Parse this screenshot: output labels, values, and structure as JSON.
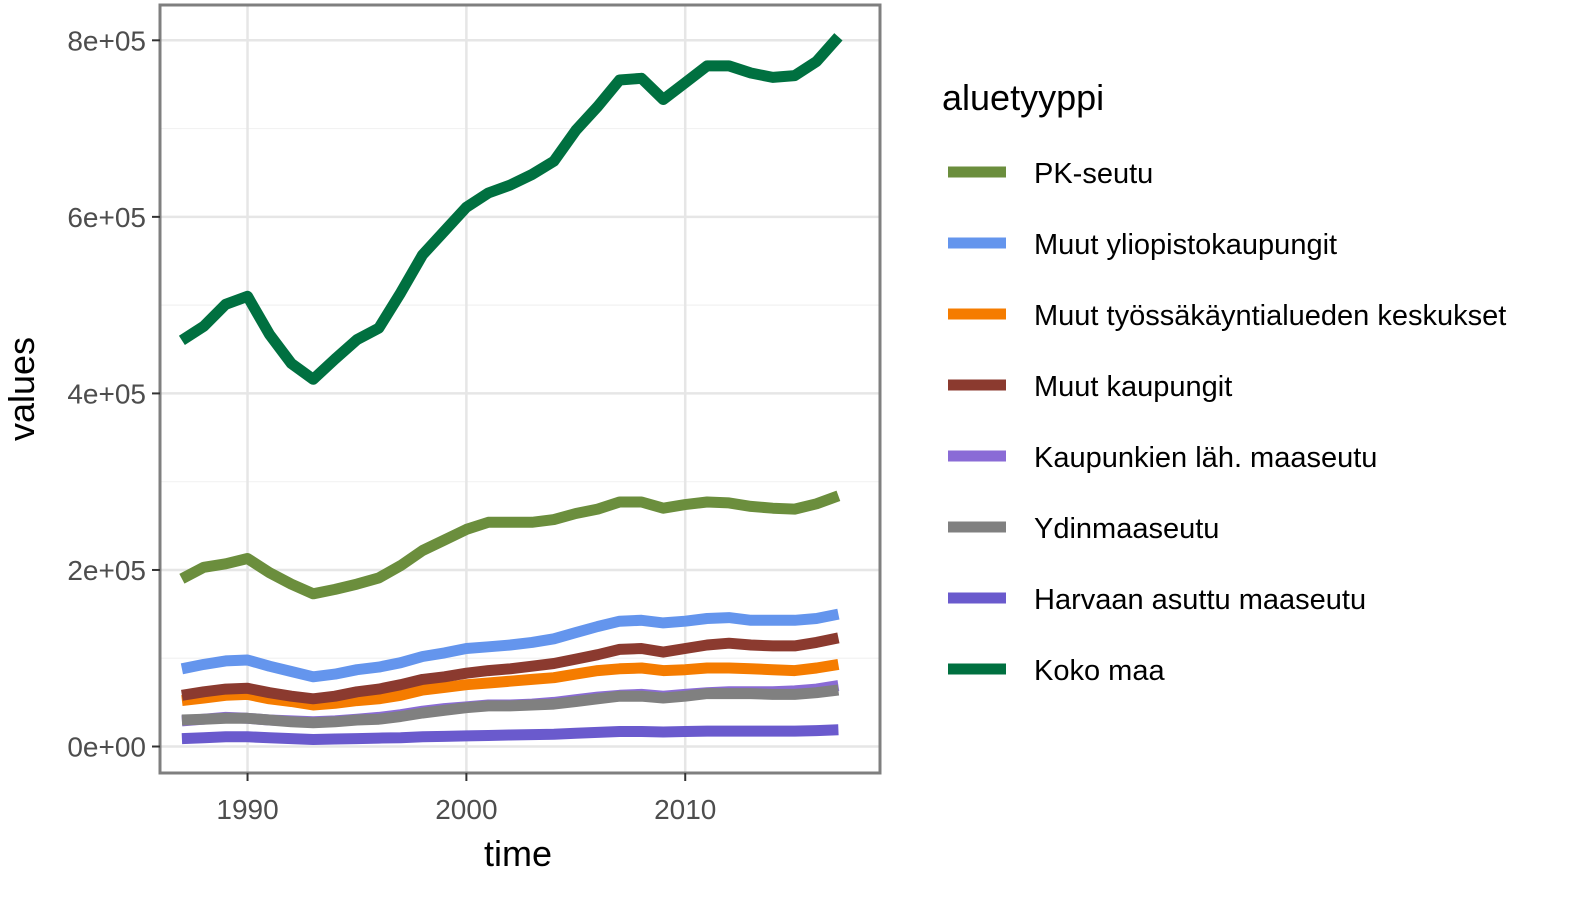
{
  "chart_data": {
    "type": "line",
    "title": "",
    "xlabel": "time",
    "ylabel": "values",
    "xlim": [
      1986.0,
      2018.9
    ],
    "ylim": [
      -30000,
      840000
    ],
    "x_ticks": [
      1990,
      2000,
      2010
    ],
    "x_tick_labels": [
      "1990",
      "2000",
      "2010"
    ],
    "y_ticks": [
      0,
      200000,
      400000,
      600000,
      800000
    ],
    "y_tick_labels": [
      "0e+00",
      "2e+05",
      "4e+05",
      "6e+05",
      "8e+05"
    ],
    "grid": true,
    "legend": {
      "title": "aluetyyppi",
      "position": "right"
    },
    "x": [
      1987,
      1988,
      1989,
      1990,
      1991,
      1992,
      1993,
      1994,
      1995,
      1996,
      1997,
      1998,
      1999,
      2000,
      2001,
      2002,
      2003,
      2004,
      2005,
      2006,
      2007,
      2008,
      2009,
      2010,
      2011,
      2012,
      2013,
      2014,
      2015,
      2016,
      2017
    ],
    "series": [
      {
        "name": "PK-seutu",
        "color": "#6b8e3d",
        "values": [
          190000,
          203000,
          207000,
          213000,
          197000,
          184000,
          173000,
          178000,
          184000,
          191000,
          205000,
          222000,
          234000,
          246000,
          254000,
          254000,
          254000,
          257000,
          264000,
          269000,
          277000,
          277000,
          270000,
          274000,
          277000,
          276000,
          272000,
          270000,
          269000,
          275000,
          284000
        ]
      },
      {
        "name": "Muut yliopistokaupungit",
        "color": "#6495ed",
        "values": [
          88000,
          93000,
          97000,
          98000,
          91000,
          85000,
          79000,
          82000,
          87000,
          90000,
          95000,
          102000,
          106000,
          111000,
          113000,
          115000,
          118000,
          122000,
          129000,
          136000,
          142000,
          143000,
          140000,
          142000,
          145000,
          146000,
          143000,
          143000,
          143000,
          145000,
          150000
        ]
      },
      {
        "name": "Muut työssäkäyntialueden keskukset",
        "color": "#f57c00",
        "values": [
          52000,
          55000,
          58000,
          59000,
          54000,
          51000,
          47000,
          49000,
          52000,
          54000,
          58000,
          64000,
          67000,
          70000,
          72000,
          74000,
          76000,
          78000,
          82000,
          86000,
          88000,
          89000,
          86000,
          87000,
          89000,
          89000,
          88000,
          87000,
          86000,
          89000,
          93000
        ]
      },
      {
        "name": "Muut kaupungit",
        "color": "#8b3a2f",
        "values": [
          58000,
          62000,
          65000,
          66000,
          61000,
          57000,
          54000,
          57000,
          62000,
          65000,
          70000,
          76000,
          79000,
          83000,
          86000,
          88000,
          91000,
          94000,
          99000,
          104000,
          110000,
          111000,
          107000,
          111000,
          115000,
          117000,
          115000,
          114000,
          114000,
          118000,
          123000
        ]
      },
      {
        "name": "Kaupunkien läh. maaseutu",
        "color": "#8a6bd6",
        "values": [
          29000,
          31000,
          33000,
          32000,
          30000,
          29000,
          28000,
          29000,
          31000,
          33000,
          36000,
          40000,
          43000,
          45000,
          47000,
          47000,
          48000,
          50000,
          53000,
          56000,
          58000,
          59000,
          57000,
          59000,
          61000,
          62000,
          62000,
          62000,
          63000,
          65000,
          69000
        ]
      },
      {
        "name": "Ydinmaaseutu",
        "color": "#808080",
        "values": [
          30000,
          31000,
          32000,
          32000,
          30000,
          28000,
          27000,
          28000,
          30000,
          31000,
          34000,
          38000,
          41000,
          44000,
          46000,
          46000,
          47000,
          48000,
          51000,
          54000,
          57000,
          57000,
          55000,
          57000,
          60000,
          60000,
          60000,
          59000,
          59000,
          61000,
          64000
        ]
      },
      {
        "name": "Harvaan asuttu maaseutu",
        "color": "#6a5acd",
        "values": [
          9000,
          10000,
          11000,
          11000,
          10000,
          9000,
          8000,
          8500,
          9000,
          9500,
          10000,
          11000,
          11500,
          12000,
          12500,
          13000,
          13500,
          14000,
          15000,
          16000,
          17000,
          17000,
          16500,
          17000,
          17500,
          17500,
          17500,
          17500,
          17500,
          18000,
          19000
        ]
      },
      {
        "name": "Koko maa",
        "color": "#007040",
        "values": [
          460000,
          476000,
          501000,
          510000,
          467000,
          434000,
          416000,
          439000,
          461000,
          474000,
          514000,
          557000,
          584000,
          611000,
          627000,
          636000,
          648000,
          663000,
          698000,
          725000,
          755000,
          757000,
          733000,
          752000,
          771000,
          771000,
          763000,
          758000,
          760000,
          776000,
          804000
        ]
      }
    ]
  }
}
